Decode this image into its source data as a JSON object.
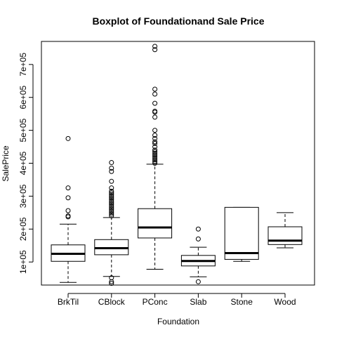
{
  "chart_data": {
    "type": "boxplot",
    "title": "Boxplot of Foundationand Sale Price",
    "xlabel": "Foundation",
    "ylabel": "SalePrice",
    "ylim": [
      30000,
      770000
    ],
    "yticks": [
      100000,
      200000,
      300000,
      400000,
      500000,
      600000,
      700000
    ],
    "ytick_labels": [
      "1e+05",
      "2e+05",
      "3e+05",
      "4e+05",
      "5e+05",
      "6e+05",
      "7e+05"
    ],
    "categories": [
      "BrkTil",
      "CBlock",
      "PConc",
      "Slab",
      "Stone",
      "Wood"
    ],
    "boxes": [
      {
        "category": "BrkTil",
        "whisker_low": 38000,
        "q1": 102000,
        "median": 125000,
        "q3": 152000,
        "whisker_high": 215000,
        "outliers": [
          237000,
          240000,
          256000,
          295000,
          325000,
          475000
        ]
      },
      {
        "category": "CBlock",
        "whisker_low": 56000,
        "q1": 122000,
        "median": 142000,
        "q3": 168000,
        "whisker_high": 235000,
        "outliers": [
          35000,
          40000,
          52000,
          240000,
          245000,
          250000,
          255000,
          260000,
          265000,
          270000,
          275000,
          280000,
          285000,
          290000,
          295000,
          300000,
          305000,
          310000,
          315000,
          325000,
          345000,
          375000,
          385000,
          402000
        ]
      },
      {
        "category": "PConc",
        "whisker_low": 78000,
        "q1": 173000,
        "median": 205000,
        "q3": 262000,
        "whisker_high": 397000,
        "outliers": [
          400000,
          405000,
          410000,
          415000,
          420000,
          425000,
          430000,
          435000,
          440000,
          450000,
          460000,
          465000,
          475000,
          485000,
          500000,
          540000,
          555000,
          558000,
          582000,
          610000,
          625000,
          745000,
          755000
        ]
      },
      {
        "category": "Slab",
        "whisker_low": 55000,
        "q1": 88000,
        "median": 103000,
        "q3": 120000,
        "whisker_high": 145000,
        "outliers": [
          40000,
          170000,
          200000
        ]
      },
      {
        "category": "Stone",
        "whisker_low": 102000,
        "q1": 108000,
        "median": 127000,
        "q3": 266000,
        "whisker_high": 266000,
        "outliers": []
      },
      {
        "category": "Wood",
        "whisker_low": 143000,
        "q1": 153000,
        "median": 165000,
        "q3": 207000,
        "whisker_high": 250000,
        "outliers": []
      }
    ]
  }
}
